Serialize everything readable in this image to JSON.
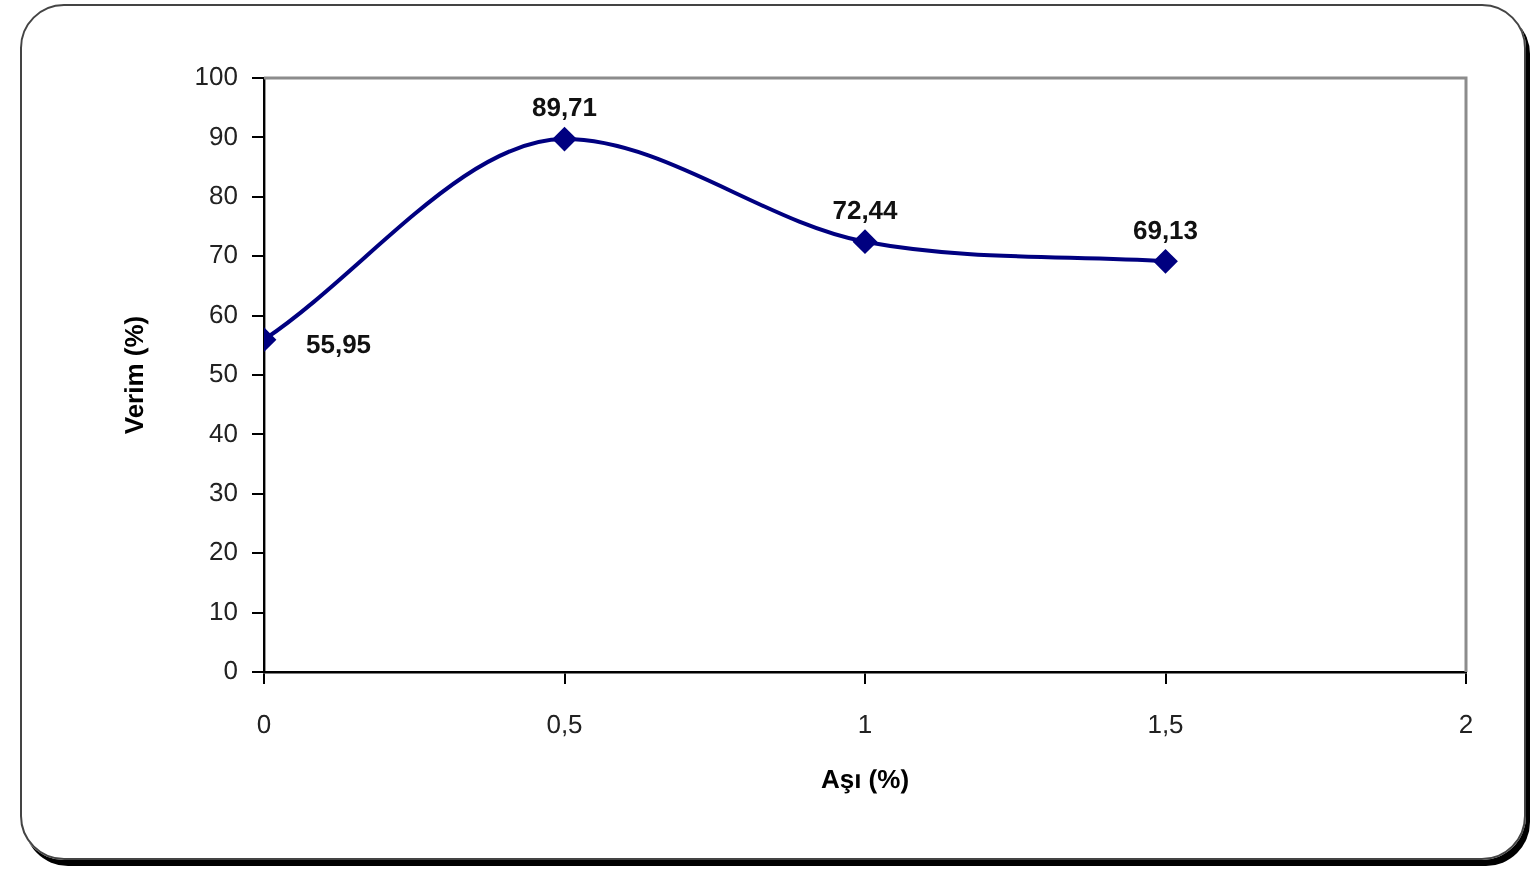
{
  "chart_data": {
    "type": "line",
    "xlabel": "Aşı (%)",
    "ylabel": "Verim (%)",
    "x": [
      0,
      0.5,
      1,
      1.5
    ],
    "series": [
      {
        "color": "#000080",
        "values": [
          55.95,
          89.71,
          72.44,
          69.13
        ],
        "value_labels": [
          "55,95",
          "89,71",
          "72,44",
          "69,13"
        ]
      }
    ],
    "xlim": [
      0,
      2
    ],
    "xticks": [
      0,
      {
        "value": 0.5,
        "label": "0,5"
      },
      1,
      {
        "value": 1.5,
        "label": "1,5"
      },
      2
    ],
    "ylim": [
      0,
      100
    ],
    "yticks": [
      0,
      10,
      20,
      30,
      40,
      50,
      60,
      70,
      80,
      90,
      100
    ],
    "grid": false,
    "legend": false,
    "marker": "diamond",
    "line_style": "solid"
  }
}
